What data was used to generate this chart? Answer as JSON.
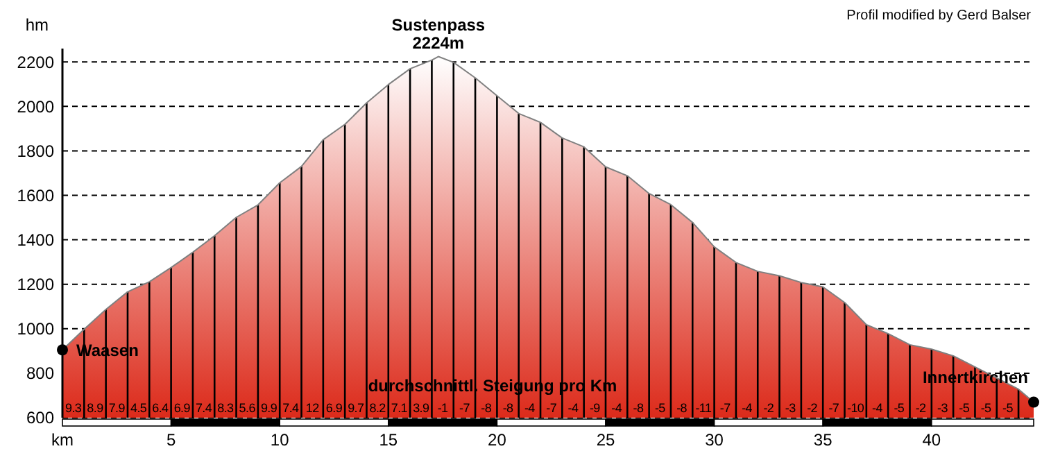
{
  "chart_data": {
    "type": "area",
    "xlabel": "km",
    "ylabel": "hm",
    "x": [
      0,
      1,
      2,
      3,
      4,
      5,
      6,
      7,
      8,
      9,
      10,
      11,
      12,
      13,
      14,
      15,
      16,
      17,
      17.3,
      18,
      19,
      20,
      21,
      22,
      23,
      24,
      25,
      26,
      27,
      28,
      29,
      30,
      31,
      32,
      33,
      34,
      35,
      36,
      37,
      38,
      39,
      40,
      41,
      42,
      43,
      44,
      44.7
    ],
    "series": [
      {
        "color": "#dc2a1a",
        "values": [
          905,
          998,
          1087,
          1166,
          1211,
          1275,
          1344,
          1418,
          1501,
          1557,
          1656,
          1730,
          1850,
          1919,
          2016,
          2098,
          2169,
          2208,
          2224,
          2198,
          2128,
          2048,
          1968,
          1928,
          1858,
          1818,
          1728,
          1688,
          1608,
          1558,
          1478,
          1368,
          1298,
          1258,
          1238,
          1208,
          1188,
          1118,
          1018,
          978,
          928,
          908,
          878,
          828,
          778,
          728,
          670
        ]
      },
      {
        "type": "scatter",
        "color": "#000000",
        "marker": "circle",
        "x": [
          0,
          44.7
        ],
        "values": [
          905,
          670
        ]
      }
    ],
    "xlim": [
      0,
      44.7
    ],
    "xticks": [
      5,
      10,
      15,
      20,
      25,
      30,
      35,
      40
    ],
    "ylim": [
      600,
      2260
    ],
    "yticks": [
      600,
      800,
      1000,
      1200,
      1400,
      1600,
      1800,
      2000,
      2200
    ],
    "grid": true,
    "annotations": [
      "Profil modified by Gerd Balser",
      "durchschnittl. Steigung pro Km",
      {
        "text": "Sustenpass\n2224m",
        "x": 17.3,
        "y": 2224
      },
      {
        "text": "Waasen",
        "x": 0,
        "y": 905
      },
      {
        "text": "Innertkirchen",
        "x": 44.7,
        "y": 670
      },
      {
        "text": "9.3",
        "x": 0.5,
        "y": 600
      },
      {
        "text": "8.9",
        "x": 1.5,
        "y": 600
      },
      {
        "text": "7.9",
        "x": 2.5,
        "y": 600
      },
      {
        "text": "4.5",
        "x": 3.5,
        "y": 600
      },
      {
        "text": "6.4",
        "x": 4.5,
        "y": 600
      },
      {
        "text": "6.9",
        "x": 5.5,
        "y": 600
      },
      {
        "text": "7.4",
        "x": 6.5,
        "y": 600
      },
      {
        "text": "8.3",
        "x": 7.5,
        "y": 600
      },
      {
        "text": "5.6",
        "x": 8.5,
        "y": 600
      },
      {
        "text": "9.9",
        "x": 9.5,
        "y": 600
      },
      {
        "text": "7.4",
        "x": 10.5,
        "y": 600
      },
      {
        "text": "12",
        "x": 11.5,
        "y": 600
      },
      {
        "text": "6.9",
        "x": 12.5,
        "y": 600
      },
      {
        "text": "9.7",
        "x": 13.5,
        "y": 600
      },
      {
        "text": "8.2",
        "x": 14.5,
        "y": 600
      },
      {
        "text": "7.1",
        "x": 15.5,
        "y": 600
      },
      {
        "text": "3.9",
        "x": 16.5,
        "y": 600
      },
      {
        "text": "-1",
        "x": 17.5,
        "y": 600
      },
      {
        "text": "-7",
        "x": 18.5,
        "y": 600
      },
      {
        "text": "-8",
        "x": 19.5,
        "y": 600
      },
      {
        "text": "-8",
        "x": 20.5,
        "y": 600
      },
      {
        "text": "-4",
        "x": 21.5,
        "y": 600
      },
      {
        "text": "-7",
        "x": 22.5,
        "y": 600
      },
      {
        "text": "-4",
        "x": 23.5,
        "y": 600
      },
      {
        "text": "-9",
        "x": 24.5,
        "y": 600
      },
      {
        "text": "-4",
        "x": 25.5,
        "y": 600
      },
      {
        "text": "-8",
        "x": 26.5,
        "y": 600
      },
      {
        "text": "-5",
        "x": 27.5,
        "y": 600
      },
      {
        "text": "-8",
        "x": 28.5,
        "y": 600
      },
      {
        "text": "-11",
        "x": 29.5,
        "y": 600
      },
      {
        "text": "-7",
        "x": 30.5,
        "y": 600
      },
      {
        "text": "-4",
        "x": 31.5,
        "y": 600
      },
      {
        "text": "-2",
        "x": 32.5,
        "y": 600
      },
      {
        "text": "-3",
        "x": 33.5,
        "y": 600
      },
      {
        "text": "-2",
        "x": 34.5,
        "y": 600
      },
      {
        "text": "-7",
        "x": 35.5,
        "y": 600
      },
      {
        "text": "-10",
        "x": 36.5,
        "y": 600
      },
      {
        "text": "-4",
        "x": 37.5,
        "y": 600
      },
      {
        "text": "-5",
        "x": 38.5,
        "y": 600
      },
      {
        "text": "-2",
        "x": 39.5,
        "y": 600
      },
      {
        "text": "-3",
        "x": 40.5,
        "y": 600
      },
      {
        "text": "-5",
        "x": 41.5,
        "y": 600
      },
      {
        "text": "-5",
        "x": 42.5,
        "y": 600
      },
      {
        "text": "-5",
        "x": 43.5,
        "y": 600
      }
    ]
  }
}
